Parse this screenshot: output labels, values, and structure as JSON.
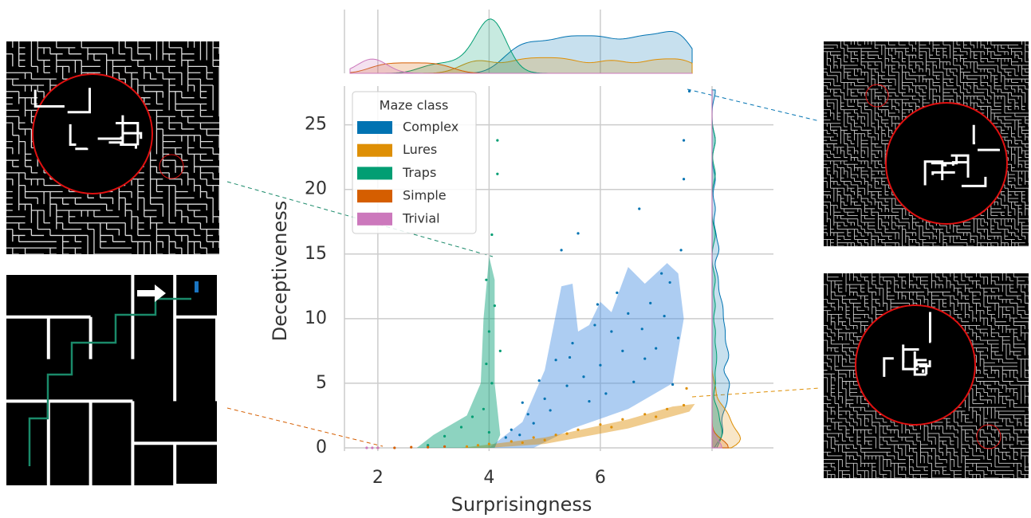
{
  "chart_data": {
    "type": "scatter",
    "x_label": "Surprisingness",
    "y_label": "Deceptiveness",
    "xlim": [
      1.4,
      7.75
    ],
    "ylim": [
      -0.25,
      28
    ],
    "xticks": [
      2,
      4,
      6
    ],
    "yticks": [
      0,
      5,
      10,
      15,
      20,
      25
    ],
    "grid": true,
    "legend_title": "Maze class",
    "legend_position": "upper left",
    "series": [
      {
        "name": "Complex",
        "color": "#0173b2",
        "x": [
          7.6,
          7.5,
          7.5,
          7.45,
          6.7,
          5.6,
          5.3,
          7.25,
          7.1,
          6.9,
          6.5,
          6.2,
          5.9,
          5.5,
          5.2,
          4.9,
          4.6,
          7.4,
          7.0,
          6.8,
          6.4,
          6.0,
          5.7,
          5.4,
          5.0,
          4.7,
          4.4,
          7.3,
          6.6,
          6.1,
          5.8,
          5.1,
          4.8,
          4.3,
          6.3,
          7.15,
          5.95,
          5.45,
          6.75,
          4.55
        ],
        "y": [
          27.6,
          23.8,
          20.8,
          15.3,
          18.5,
          16.6,
          15.3,
          12.8,
          13.5,
          11.2,
          10.4,
          9.0,
          9.5,
          8.1,
          6.8,
          5.2,
          3.5,
          8.5,
          7.7,
          6.9,
          7.5,
          6.4,
          5.5,
          4.8,
          3.8,
          2.6,
          1.4,
          4.9,
          5.1,
          4.2,
          3.6,
          2.9,
          1.9,
          0.8,
          12.0,
          10.2,
          11.1,
          7.0,
          9.2,
          1.0
        ],
        "region_x": [
          4.0,
          4.6,
          5.0,
          5.3,
          5.5,
          5.6,
          5.8,
          6.0,
          6.2,
          6.5,
          6.8,
          7.2,
          7.4,
          7.5,
          7.3,
          6.5,
          5.5,
          4.8
        ],
        "region_y": [
          0,
          2,
          6,
          12.5,
          12.7,
          9,
          9.5,
          11.3,
          10.5,
          14,
          12.7,
          14.3,
          13.5,
          10,
          5,
          3,
          1.5,
          0
        ]
      },
      {
        "name": "Lures",
        "color": "#de8f05",
        "x": [
          3.6,
          4.0,
          4.4,
          4.8,
          5.2,
          5.6,
          6.0,
          6.4,
          6.8,
          7.2,
          7.5,
          7.55,
          4.6,
          5.4,
          6.2,
          7.0,
          3.8,
          5.0
        ],
        "y": [
          0.1,
          0.3,
          0.5,
          0.8,
          1.0,
          1.4,
          1.8,
          2.2,
          2.6,
          3.0,
          3.3,
          4.6,
          0.4,
          1.1,
          1.6,
          2.4,
          0.2,
          0.6
        ],
        "region_x": [
          3.5,
          5.0,
          6.5,
          7.3,
          7.7,
          7.6,
          6.5,
          5.0,
          4.0
        ],
        "region_y": [
          0,
          0.8,
          2.2,
          3.2,
          3.4,
          2.8,
          1.5,
          0.3,
          0
        ]
      },
      {
        "name": "Traps",
        "color": "#029e73",
        "x": [
          4.15,
          4.15,
          4.05,
          4.2,
          3.95,
          4.0,
          4.05,
          3.9,
          4.1,
          3.5,
          3.2,
          2.9,
          3.7,
          3.95,
          4.0
        ],
        "y": [
          23.8,
          21.2,
          16.5,
          7.5,
          13.0,
          9.0,
          5.0,
          3.0,
          11.0,
          1.6,
          0.9,
          0.2,
          2.4,
          6.5,
          1.2
        ],
        "region_x": [
          2.7,
          3.0,
          3.6,
          3.85,
          3.9,
          4.0,
          4.1,
          4.1,
          4.2,
          4.1
        ],
        "region_y": [
          0,
          1,
          2.5,
          5,
          10,
          14.8,
          13,
          5,
          1,
          0
        ]
      },
      {
        "name": "Simple",
        "color": "#d55e00",
        "x": [
          2.0,
          2.3,
          2.6,
          2.9,
          3.2
        ],
        "y": [
          0,
          0,
          0.05,
          0.05,
          0.1
        ],
        "region_x": [],
        "region_y": []
      },
      {
        "name": "Trivial",
        "color": "#cc78bc",
        "x": [
          1.8,
          1.9,
          2.0
        ],
        "y": [
          0,
          0,
          0
        ],
        "region_x": [],
        "region_y": []
      }
    ]
  }
}
